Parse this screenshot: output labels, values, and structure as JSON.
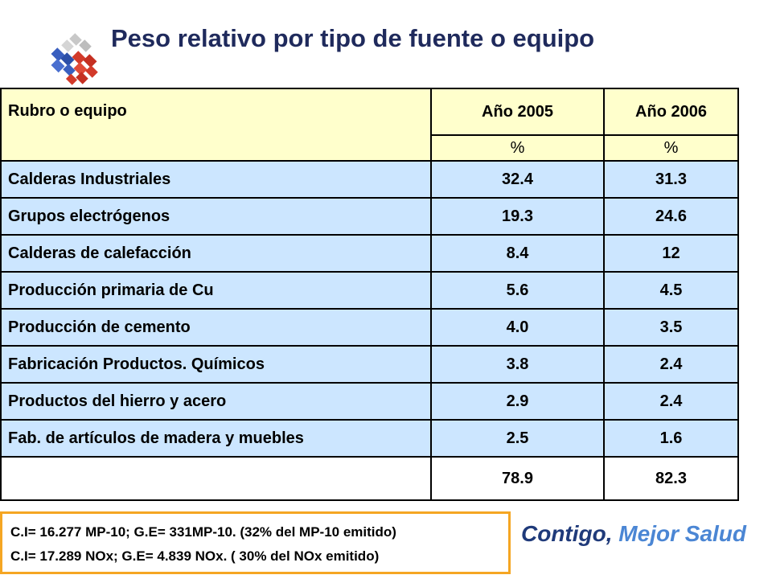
{
  "title": "Peso relativo por tipo de fuente o equipo",
  "table": {
    "headers": [
      "Rubro o equipo",
      "Año 2005",
      "Año 2006"
    ],
    "units": [
      "%",
      "%"
    ],
    "rows": [
      [
        "Calderas Industriales",
        "32.4",
        "31.3"
      ],
      [
        "Grupos electrógenos",
        "19.3",
        "24.6"
      ],
      [
        "Calderas de calefacción",
        "8.4",
        "12"
      ],
      [
        "Producción primaria de Cu",
        "5.6",
        "4.5"
      ],
      [
        "Producción de cemento",
        "4.0",
        "3.5"
      ],
      [
        "Fabricación Productos. Químicos",
        "3.8",
        "2.4"
      ],
      [
        "Productos del hierro y acero",
        "2.9",
        "2.4"
      ],
      [
        "Fab. de artículos de madera y muebles",
        "2.5",
        "1.6"
      ]
    ],
    "totals": [
      "",
      "78.9",
      "82.3"
    ]
  },
  "notes": [
    "C.I= 16.277 MP-10; G.E= 331MP-10. (32% del MP-10 emitido)",
    "C.I= 17.289 NOx; G.E= 4.839 NOx. ( 30% del NOx emitido)"
  ],
  "slogan": {
    "part1": "Contigo,",
    "part2": " Mejor Salud"
  },
  "logo": {
    "icon": "cube-grid-logo-icon",
    "colors": [
      "#3a5fbf",
      "#d23a2a",
      "#c8c8c8"
    ]
  }
}
